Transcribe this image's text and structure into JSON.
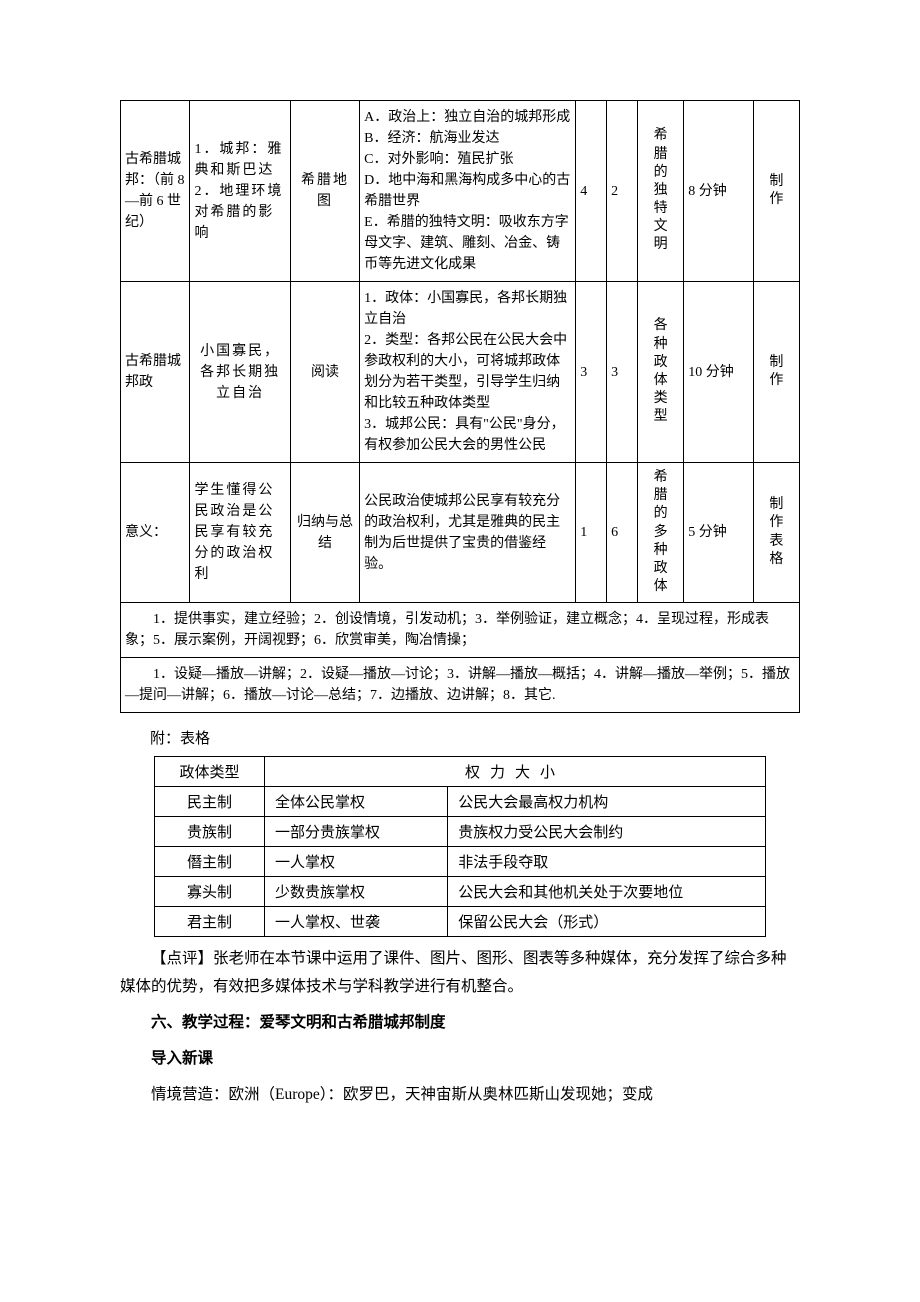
{
  "mainTable": {
    "rows": [
      {
        "c0": "古希腊城邦：（前 8 ―前 6 世纪）",
        "c1": "1．城邦：雅典和斯巴达\n2．地理环境对希腊的影响",
        "c2": "希腊地图",
        "c3": "A．政治上：独立自治的城邦形成\nB．经济：航海业发达\nC．对外影响：殖民扩张\nD．地中海和黑海构成多中心的古希腊世界\nE．希腊的独特文明：吸收东方字母文字、建筑、雕刻、冶金、铸币等先进文化成果",
        "c4": "4",
        "c5": "2",
        "c6": "希腊的独特文明",
        "c7": "8 分钟",
        "c8": "制作"
      },
      {
        "c0": "古希腊城邦政",
        "c1": "小国寡民，各邦长期独立自治",
        "c2": "阅读",
        "c3": "1．政体：小国寡民，各邦长期独立自治\n2．类型：各邦公民在公民大会中参政权利的大小，可将城邦政体划分为若干类型，引导学生归纳和比较五种政体类型\n3．城邦公民：具有\"公民\"身分，有权参加公民大会的男性公民",
        "c4": "3",
        "c5": "3",
        "c6": "各种政体类型",
        "c7": "10 分钟",
        "c8": "制作"
      },
      {
        "c0": "意义：",
        "c1": "学生懂得公民政治是公民享有较充分的政治权利",
        "c2": "归纳与总结",
        "c3": "公民政治使城邦公民享有较充分的政治权利，尤其是雅典的民主制为后世提供了宝贵的借鉴经验。",
        "c4": "1",
        "c5": "6",
        "c6": "希腊的多种政体",
        "c7": "5 分钟",
        "c8": "制作表格"
      }
    ],
    "footer1": "1．提供事实，建立经验；2．创设情境，引发动机；3．举例验证，建立概念；4．呈现过程，形成表象；5．展示案例，开阔视野；6．欣赏审美，陶冶情操；",
    "footer2": "1．设疑―播放―讲解；2．设疑―播放―讨论；3．讲解―播放―概括；4．讲解―播放―举例；5．播放―提问―讲解；6．播放―讨论―总结；7．边播放、边讲解；8．其它."
  },
  "attach": "附：表格",
  "polityTable": {
    "header": {
      "c0": "政体类型",
      "c12": "权力大小"
    },
    "rows": [
      {
        "c0": "民主制",
        "c1": "全体公民掌权",
        "c2": "公民大会最高权力机构"
      },
      {
        "c0": "贵族制",
        "c1": "一部分贵族掌权",
        "c2": "贵族权力受公民大会制约"
      },
      {
        "c0": "僭主制",
        "c1": "一人掌权",
        "c2": "非法手段夺取"
      },
      {
        "c0": "寡头制",
        "c1": "少数贵族掌权",
        "c2": "公民大会和其他机关处于次要地位"
      },
      {
        "c0": "君主制",
        "c1": "一人掌权、世袭",
        "c2": "保留公民大会（形式）"
      }
    ]
  },
  "comment": "【点评】张老师在本节课中运用了课件、图片、图形、图表等多种媒体，充分发挥了综合多种媒体的优势，有效把多媒体技术与学科教学进行有机整合。",
  "section": "六、教学过程：爱琴文明和古希腊城邦制度",
  "intro": "导入新课",
  "context": "情境营造：欧洲（Europe）：欧罗巴，天神宙斯从奥林匹斯山发现她；变成"
}
